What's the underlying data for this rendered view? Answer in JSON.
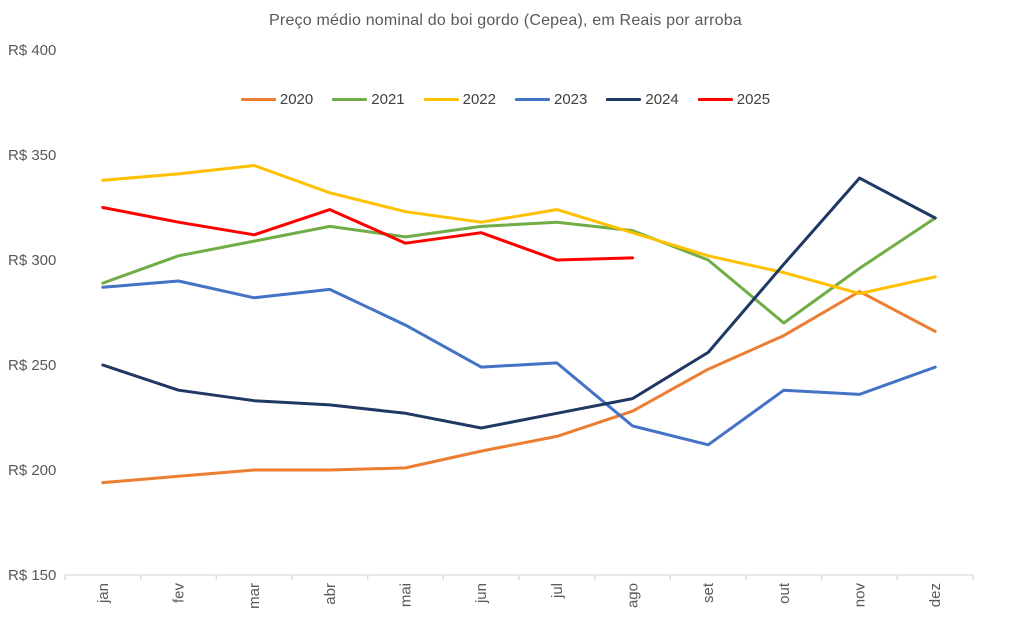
{
  "chart_data": {
    "type": "line",
    "title": "Preço médio nominal do boi gordo (Cepea), em Reais por arroba",
    "categories": [
      "jan",
      "fev",
      "mar",
      "abr",
      "mai",
      "jun",
      "jul",
      "ago",
      "set",
      "out",
      "nov",
      "dez"
    ],
    "series": [
      {
        "name": "2020",
        "color": "#ED7D31",
        "values": [
          194,
          197,
          200,
          200,
          201,
          209,
          216,
          228,
          248,
          264,
          285,
          266
        ]
      },
      {
        "name": "2021",
        "color": "#70AD47",
        "values": [
          289,
          302,
          309,
          316,
          311,
          316,
          318,
          314,
          300,
          270,
          296,
          320
        ]
      },
      {
        "name": "2022",
        "color": "#FFC000",
        "values": [
          338,
          341,
          345,
          332,
          323,
          318,
          324,
          313,
          302,
          294,
          284,
          292
        ]
      },
      {
        "name": "2023",
        "color": "#4472C4",
        "values": [
          287,
          290,
          282,
          286,
          269,
          249,
          251,
          221,
          212,
          238,
          236,
          249
        ]
      },
      {
        "name": "2024",
        "color": "#1F3864",
        "values": [
          250,
          238,
          233,
          231,
          227,
          220,
          227,
          234,
          256,
          298,
          339,
          320
        ]
      },
      {
        "name": "2025",
        "color": "#FF0000",
        "values": [
          325,
          318,
          312,
          324,
          308,
          313,
          300,
          301
        ]
      }
    ],
    "y_axis": {
      "ticks": [
        {
          "label": "R$ 150",
          "value": 150
        },
        {
          "label": "R$ 200",
          "value": 200
        },
        {
          "label": "R$ 250",
          "value": 250
        },
        {
          "label": "R$ 300",
          "value": 300
        },
        {
          "label": "R$ 350",
          "value": 350
        },
        {
          "label": "R$ 400",
          "value": 400
        }
      ],
      "min": 150,
      "max": 400
    },
    "legend_position": "top",
    "grid": false,
    "colors": {
      "axis_line": "#D9D9D9",
      "axis_text": "#595959",
      "legend_text": "#404040",
      "title_text": "#595959",
      "background": "#FFFFFF"
    }
  }
}
